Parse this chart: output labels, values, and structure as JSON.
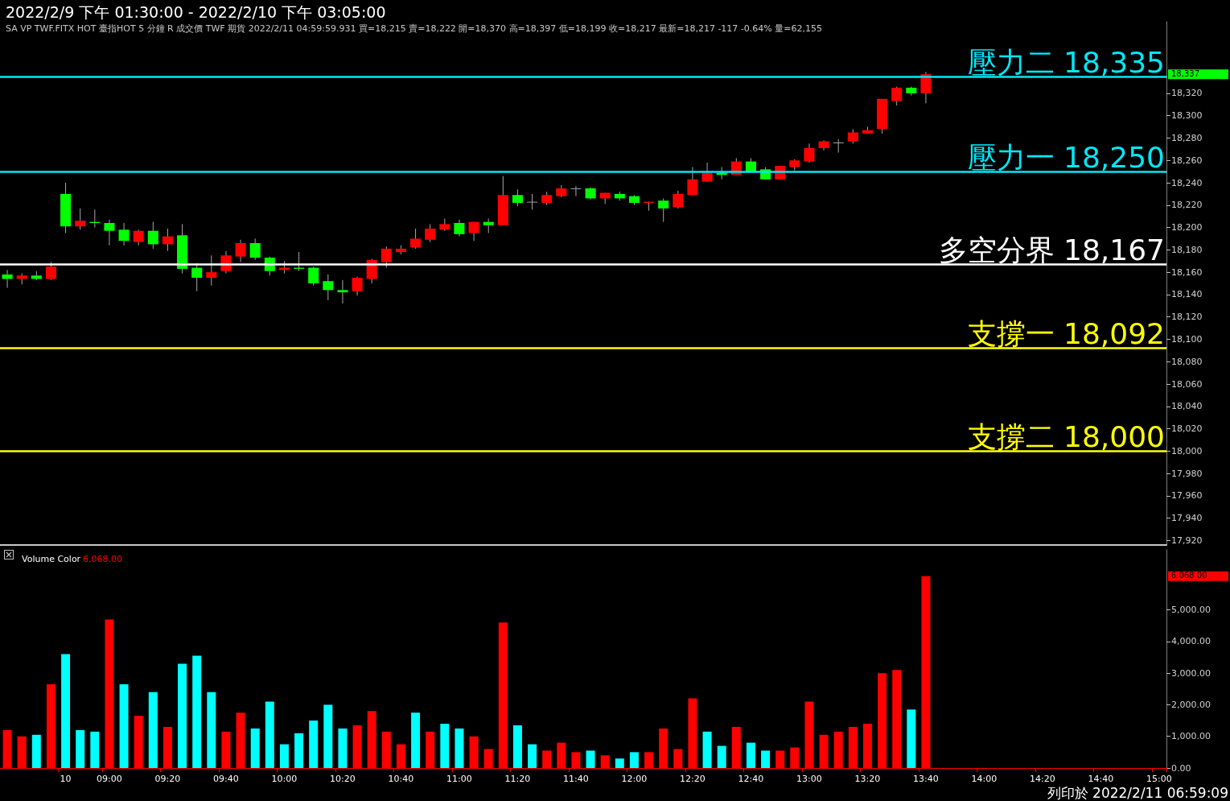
{
  "chart_data": [
    {
      "type": "candlestick",
      "title": "2022/2/9 下午 01:30:00 - 2022/2/10 下午 03:05:00",
      "subtitle": "SA VP TWF.FITX HOT 臺指HOT 5 分鐘 R 成交價 TWF 期貨 2022/2/11 04:59:59.931 買=18,215 賣=18,222 開=18,370 高=18,397 低=18,199 收=18,217 最新=18,217 -117 -0.64% 量=62,155",
      "categories": [
        null,
        null,
        null,
        null,
        null,
        null,
        null,
        null,
        null,
        null,
        null,
        null,
        null,
        null,
        null,
        null,
        null,
        null,
        null,
        null,
        null,
        null,
        null,
        null,
        null,
        null,
        null,
        null,
        null,
        null,
        null,
        null,
        null,
        null,
        null,
        null,
        null,
        null,
        null,
        null,
        null,
        null,
        null,
        null,
        null,
        null,
        null,
        null,
        null,
        null,
        null,
        null,
        null,
        null,
        null,
        null,
        null,
        null,
        null,
        null,
        null,
        null,
        null,
        null,
        null,
        null,
        null,
        null,
        null,
        null,
        null,
        null,
        null,
        null,
        null,
        null,
        null,
        null,
        null,
        null
      ],
      "ohlc": [
        [
          18158,
          18162,
          18146,
          18154
        ],
        [
          18154,
          18159,
          18149,
          18157
        ],
        [
          18157,
          18161,
          18153,
          18154
        ],
        [
          18154,
          18169,
          18153,
          18165
        ],
        [
          18230,
          18240,
          18195,
          18201
        ],
        [
          18201,
          18217,
          18198,
          18206
        ],
        [
          18205,
          18216,
          18200,
          18204
        ],
        [
          18204,
          18207,
          18184,
          18197
        ],
        [
          18198,
          18204,
          18184,
          18188
        ],
        [
          18187,
          18198,
          18184,
          18197
        ],
        [
          18197,
          18205,
          18181,
          18185
        ],
        [
          18185,
          18199,
          18179,
          18192
        ],
        [
          18193,
          18203,
          18159,
          18163
        ],
        [
          18164,
          18168,
          18143,
          18155
        ],
        [
          18155,
          18175,
          18148,
          18160
        ],
        [
          18161,
          18179,
          18159,
          18175
        ],
        [
          18174,
          18189,
          18169,
          18186
        ],
        [
          18186,
          18190,
          18171,
          18173
        ],
        [
          18173,
          18174,
          18157,
          18161
        ],
        [
          18162,
          18170,
          18159,
          18164
        ],
        [
          18164,
          18178,
          18161,
          18163
        ],
        [
          18164,
          18165,
          18148,
          18150
        ],
        [
          18152,
          18158,
          18135,
          18144
        ],
        [
          18144,
          18153,
          18132,
          18142
        ],
        [
          18143,
          18156,
          18139,
          18155
        ],
        [
          18154,
          18172,
          18150,
          18171
        ],
        [
          18169,
          18183,
          18164,
          18181
        ],
        [
          18178,
          18184,
          18176,
          18181
        ],
        [
          18182,
          18199,
          18181,
          18190
        ],
        [
          18189,
          18203,
          18187,
          18199
        ],
        [
          18198,
          18208,
          18197,
          18203
        ],
        [
          18204,
          18207,
          18192,
          18194
        ],
        [
          18195,
          18205,
          18188,
          18205
        ],
        [
          18205,
          18208,
          18195,
          18202
        ],
        [
          18202,
          18246,
          18202,
          18229
        ],
        [
          18229,
          18234,
          18219,
          18222
        ],
        [
          18223,
          18230,
          18216,
          18223
        ],
        [
          18222,
          18232,
          18220,
          18229
        ],
        [
          18228,
          18238,
          18227,
          18235
        ],
        [
          18235,
          18237,
          18228,
          18235
        ],
        [
          18235,
          18236,
          18225,
          18226
        ],
        [
          18226,
          18231,
          18221,
          18231
        ],
        [
          18230,
          18232,
          18224,
          18226
        ],
        [
          18228,
          18229,
          18220,
          18222
        ],
        [
          18222,
          18223,
          18215,
          18223
        ],
        [
          18224,
          18226,
          18205,
          18217
        ],
        [
          18218,
          18233,
          18217,
          18230
        ],
        [
          18229,
          18254,
          18229,
          18243
        ],
        [
          18241,
          18258,
          18241,
          18249
        ],
        [
          18249,
          18254,
          18243,
          18247
        ],
        [
          18247,
          18262,
          18247,
          18259
        ],
        [
          18259,
          18262,
          18250,
          18250
        ],
        [
          18252,
          18254,
          18243,
          18243
        ],
        [
          18243,
          18255,
          18243,
          18255
        ],
        [
          18254,
          18261,
          18251,
          18260
        ],
        [
          18259,
          18275,
          18258,
          18271
        ],
        [
          18271,
          18278,
          18269,
          18277
        ],
        [
          18276,
          18279,
          18267,
          18276
        ],
        [
          18277,
          18288,
          18275,
          18285
        ],
        [
          18284,
          18290,
          18284,
          18287
        ],
        [
          18288,
          18315,
          18284,
          18315
        ],
        [
          18313,
          18326,
          18309,
          18325
        ],
        [
          18325,
          18326,
          18318,
          18320
        ],
        [
          18320,
          18339,
          18311,
          18337
        ],
        null,
        null,
        null,
        null,
        null,
        null,
        null,
        null,
        null,
        null,
        null,
        null,
        null,
        null,
        null,
        null
      ],
      "colors": [
        "#00ff00",
        "#ff0000",
        "#00ff00",
        "#ff0000",
        "#00ff00",
        "#ff0000",
        "#00ff00",
        "#00ff00",
        "#00ff00",
        "#ff0000",
        "#00ff00",
        "#ff0000",
        "#00ff00",
        "#00ff00",
        "#ff0000",
        "#ff0000",
        "#ff0000",
        "#00ff00",
        "#00ff00",
        "#ff0000",
        "#00ff00",
        "#00ff00",
        "#00ff00",
        "#00ff00",
        "#ff0000",
        "#ff0000",
        "#ff0000",
        "#ff0000",
        "#ff0000",
        "#ff0000",
        "#ff0000",
        "#00ff00",
        "#ff0000",
        "#00ff00",
        "#ff0000",
        "#00ff00",
        "#a0a0a0",
        "#ff0000",
        "#ff0000",
        "#a0a0a0",
        "#00ff00",
        "#ff0000",
        "#00ff00",
        "#00ff00",
        "#ff0000",
        "#00ff00",
        "#ff0000",
        "#ff0000",
        "#ff0000",
        "#00ff00",
        "#ff0000",
        "#00ff00",
        "#00ff00",
        "#ff0000",
        "#ff0000",
        "#ff0000",
        "#ff0000",
        "#a0a0a0",
        "#ff0000",
        "#ff0000",
        "#ff0000",
        "#ff0000",
        "#00ff00",
        "#ff0000",
        null,
        null,
        null,
        null,
        null,
        null,
        null,
        null,
        null,
        null,
        null,
        null,
        null,
        null,
        null,
        null
      ],
      "ylim": [
        17916,
        18384
      ],
      "yticks": [
        {
          "value": 17920,
          "label": "17,920"
        },
        {
          "value": 17940,
          "label": "17,940"
        },
        {
          "value": 17960,
          "label": "17,960"
        },
        {
          "value": 17980,
          "label": "17,980"
        },
        {
          "value": 18000,
          "label": "18,000"
        },
        {
          "value": 18020,
          "label": "18,020"
        },
        {
          "value": 18040,
          "label": "18,040"
        },
        {
          "value": 18060,
          "label": "18,060"
        },
        {
          "value": 18080,
          "label": "18,080"
        },
        {
          "value": 18100,
          "label": "18,100"
        },
        {
          "value": 18120,
          "label": "18,120"
        },
        {
          "value": 18140,
          "label": "18,140"
        },
        {
          "value": 18160,
          "label": "18,160"
        },
        {
          "value": 18180,
          "label": "18,180"
        },
        {
          "value": 18200,
          "label": "18,200"
        },
        {
          "value": 18220,
          "label": "18,220"
        },
        {
          "value": 18240,
          "label": "18,240"
        },
        {
          "value": 18260,
          "label": "18,260"
        },
        {
          "value": 18280,
          "label": "18,280"
        },
        {
          "value": 18300,
          "label": "18,300"
        },
        {
          "value": 18320,
          "label": "18,320"
        }
      ],
      "tick_labels": "y",
      "ref_lines": [
        {
          "axis": "y",
          "value": 18335,
          "label": "壓力二 18,335",
          "color": "#00e8f8"
        },
        {
          "axis": "y",
          "value": 18250,
          "label": "壓力一 18,250",
          "color": "#00e8f8"
        },
        {
          "axis": "y",
          "value": 18167,
          "label": "多空分界 18,167",
          "color": "#ffffff"
        },
        {
          "axis": "y",
          "value": 18092,
          "label": "支撐一 18,092",
          "color": "#ffff00"
        },
        {
          "axis": "y",
          "value": 18000,
          "label": "支撐二 18,000",
          "color": "#ffff00"
        }
      ],
      "annotations": [
        "18,337"
      ]
    },
    {
      "type": "bar",
      "title": "Volume Color",
      "subtitle": "6,068.00",
      "categories": [
        null,
        null,
        null,
        null,
        "10",
        null,
        null,
        "09:00",
        null,
        null,
        null,
        "09:20",
        null,
        null,
        null,
        "09:40",
        null,
        null,
        null,
        "10:00",
        null,
        null,
        null,
        "10:20",
        null,
        null,
        null,
        "10:40",
        null,
        null,
        null,
        "11:00",
        null,
        null,
        null,
        "11:20",
        null,
        null,
        null,
        "11:40",
        null,
        null,
        null,
        "12:00",
        null,
        null,
        null,
        "12:20",
        null,
        null,
        null,
        "12:40",
        null,
        null,
        null,
        "13:00",
        null,
        null,
        null,
        "13:20",
        null,
        null,
        null,
        "13:40",
        null,
        null,
        null,
        "14:00",
        null,
        null,
        null,
        "14:20",
        null,
        null,
        null,
        "14:40",
        null,
        null,
        null,
        "15:00"
      ],
      "values": [
        1200,
        1000,
        1050,
        2650,
        3600,
        1200,
        1150,
        4700,
        2650,
        1650,
        2400,
        1300,
        3300,
        3550,
        2400,
        1150,
        1750,
        1250,
        2100,
        750,
        1100,
        1500,
        2000,
        1250,
        1350,
        1800,
        1150,
        750,
        1750,
        1150,
        1400,
        1250,
        1000,
        600,
        4600,
        1350,
        750,
        550,
        800,
        500,
        550,
        400,
        300,
        500,
        500,
        1250,
        600,
        2200,
        1150,
        700,
        1300,
        800,
        550,
        550,
        650,
        2100,
        1050,
        1150,
        1300,
        1400,
        3000,
        3100,
        1850,
        6068,
        null,
        null,
        null,
        null,
        null,
        null,
        null,
        null,
        null,
        null,
        null,
        null,
        null,
        null,
        null,
        null
      ],
      "colors": [
        "#ff0000",
        "#ff0000",
        "#00ffff",
        "#ff0000",
        "#00ffff",
        "#00ffff",
        "#00ffff",
        "#ff0000",
        "#00ffff",
        "#ff0000",
        "#00ffff",
        "#ff0000",
        "#00ffff",
        "#00ffff",
        "#00ffff",
        "#ff0000",
        "#ff0000",
        "#00ffff",
        "#00ffff",
        "#00ffff",
        "#00ffff",
        "#00ffff",
        "#00ffff",
        "#00ffff",
        "#ff0000",
        "#ff0000",
        "#ff0000",
        "#ff0000",
        "#00ffff",
        "#ff0000",
        "#00ffff",
        "#00ffff",
        "#ff0000",
        "#ff0000",
        "#ff0000",
        "#00ffff",
        "#00ffff",
        "#ff0000",
        "#ff0000",
        "#ff0000",
        "#00ffff",
        "#ff0000",
        "#00ffff",
        "#00ffff",
        "#ff0000",
        "#ff0000",
        "#ff0000",
        "#ff0000",
        "#00ffff",
        "#00ffff",
        "#ff0000",
        "#00ffff",
        "#00ffff",
        "#ff0000",
        "#ff0000",
        "#ff0000",
        "#ff0000",
        "#ff0000",
        "#ff0000",
        "#ff0000",
        "#ff0000",
        "#ff0000",
        "#00ffff",
        "#ff0000",
        null,
        null,
        null,
        null,
        null,
        null,
        null,
        null,
        null,
        null,
        null,
        null,
        null,
        null,
        null,
        null
      ],
      "ylim": [
        0,
        6900
      ],
      "yticks": [
        {
          "value": 0,
          "label": "0.00"
        },
        {
          "value": 1000,
          "label": "1,000.00"
        },
        {
          "value": 2000,
          "label": "2,000.00"
        },
        {
          "value": 3000,
          "label": "3,000.00"
        },
        {
          "value": 4000,
          "label": "4,000.00"
        },
        {
          "value": 5000,
          "label": "5,000.00"
        }
      ],
      "annotations": [
        "6,068.00",
        "列印於 2022/2/11 06:59:09"
      ]
    }
  ]
}
